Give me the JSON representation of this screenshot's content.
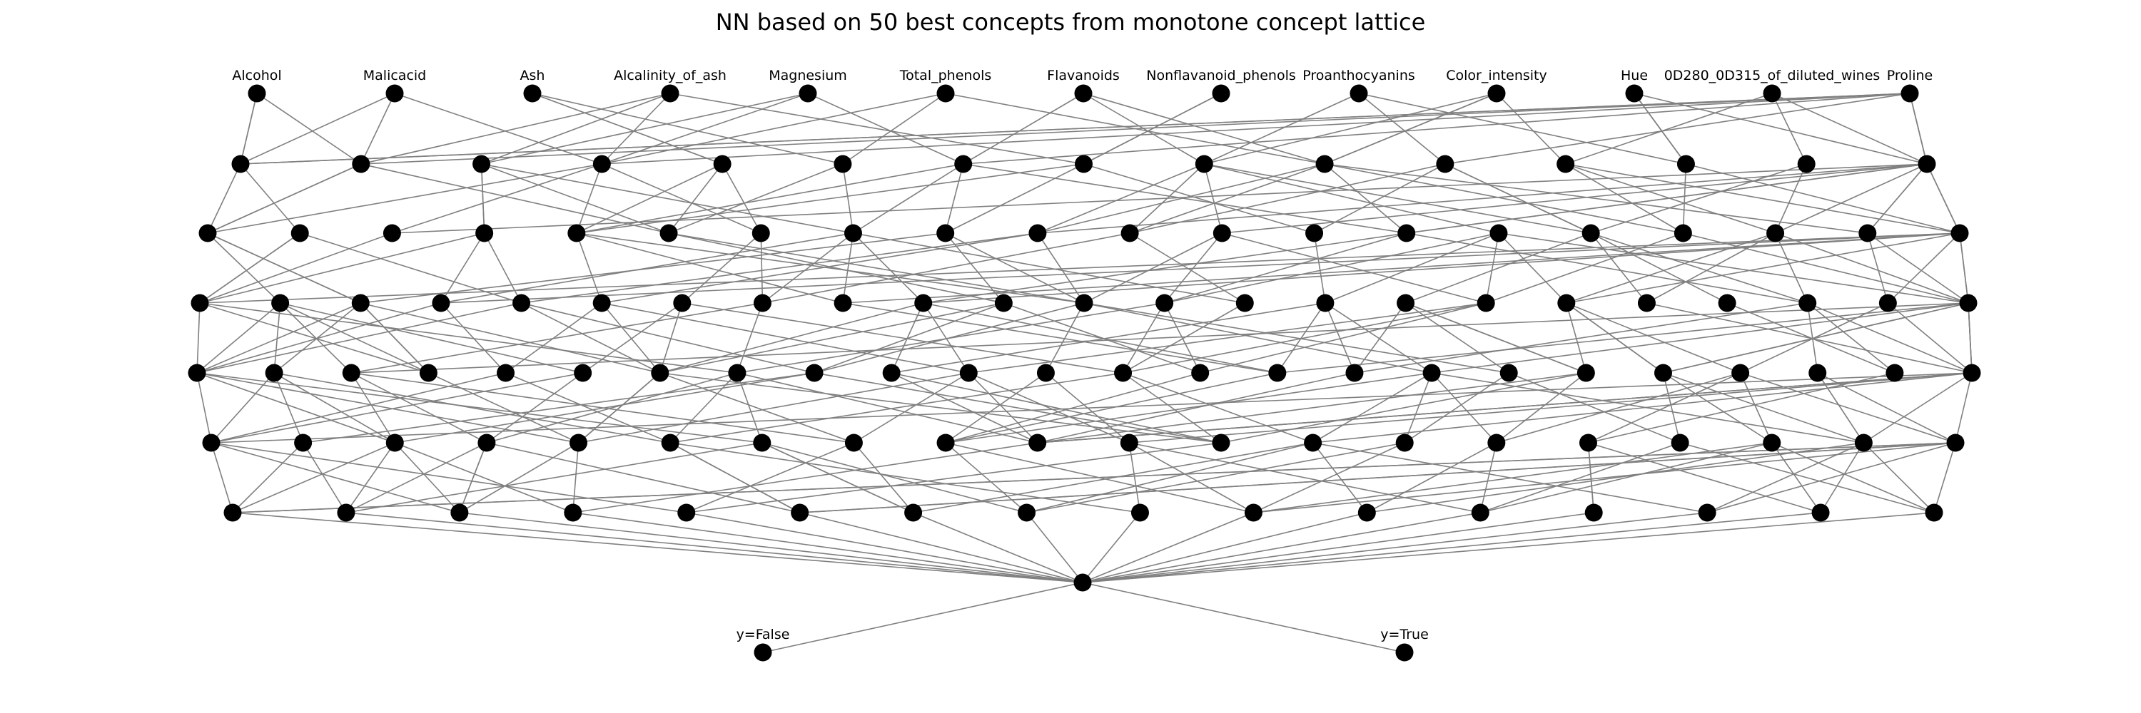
{
  "title": "NN based on 50 best concepts from monotone concept lattice",
  "layers": [
    13,
    15,
    20,
    23,
    24,
    20,
    16,
    1,
    2
  ],
  "input_labels": [
    "Alcohol",
    "Malicacid",
    "Ash",
    "Alcalinity_of_ash",
    "Magnesium",
    "Total_phenols",
    "Flavanoids",
    "Nonflavanoid_phenols",
    "Proanthocyanins",
    "Color_intensity",
    "Hue",
    "0D280_0D315_of_diluted_wines",
    "Proline"
  ],
  "output_labels": [
    "y=False",
    "y=True"
  ],
  "colors": {
    "node": "#000000",
    "edge": "#808080"
  }
}
